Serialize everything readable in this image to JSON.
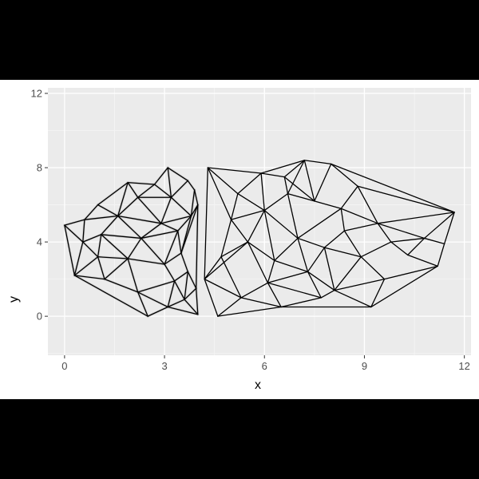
{
  "chart_data": {
    "type": "network",
    "title": "",
    "xlabel": "x",
    "ylabel": "y",
    "xlim": [
      -0.5,
      12.2
    ],
    "ylim": [
      -2.1,
      12.3
    ],
    "x_ticks": [
      0,
      3,
      6,
      9,
      12
    ],
    "y_ticks": [
      0,
      4,
      8,
      12
    ],
    "x_tick_labels": [
      "0",
      "3",
      "6",
      "9",
      "12"
    ],
    "y_tick_labels": [
      "0",
      "4",
      "8",
      "12"
    ],
    "grid": true,
    "legend": "none",
    "colors": {
      "panel_bg": "#ebebeb",
      "grid_major": "#ffffff",
      "grid_minor": "#f5f5f5",
      "edge": "#000000",
      "halo": "#bdbdbd",
      "outer_bg": "#000000"
    },
    "series": [
      {
        "points": [
          [
            0,
            4.9
          ],
          [
            0.3,
            2.2
          ],
          [
            1.0,
            6.0
          ],
          [
            1.1,
            4.4
          ],
          [
            1.2,
            2.0
          ],
          [
            1.0,
            3.2
          ],
          [
            0.55,
            4.0
          ],
          [
            1.6,
            5.4
          ],
          [
            1.9,
            3.1
          ],
          [
            2.2,
            6.4
          ],
          [
            2.3,
            4.2
          ],
          [
            2.5,
            0.0
          ],
          [
            2.2,
            1.3
          ],
          [
            2.7,
            7.1
          ],
          [
            2.9,
            5.0
          ],
          [
            3.0,
            2.8
          ],
          [
            3.1,
            8.0
          ],
          [
            3.2,
            6.4
          ],
          [
            3.4,
            4.6
          ],
          [
            3.5,
            3.4
          ],
          [
            3.3,
            1.9
          ],
          [
            3.1,
            0.5
          ],
          [
            3.7,
            7.3
          ],
          [
            3.8,
            5.4
          ],
          [
            3.7,
            2.4
          ],
          [
            3.9,
            6.8
          ],
          [
            4.0,
            6.0
          ],
          [
            3.95,
            1.5
          ],
          [
            4.0,
            0.1
          ],
          [
            3.6,
            0.9
          ],
          [
            1.9,
            7.2
          ],
          [
            0.6,
            5.2
          ]
        ],
        "edges": [
          [
            0,
            31
          ],
          [
            0,
            6
          ],
          [
            0,
            1
          ],
          [
            31,
            2
          ],
          [
            31,
            6
          ],
          [
            31,
            7
          ],
          [
            2,
            30
          ],
          [
            2,
            7
          ],
          [
            30,
            13
          ],
          [
            30,
            7
          ],
          [
            30,
            9
          ],
          [
            13,
            16
          ],
          [
            13,
            9
          ],
          [
            16,
            22
          ],
          [
            16,
            17
          ],
          [
            13,
            17
          ],
          [
            22,
            25
          ],
          [
            22,
            17
          ],
          [
            25,
            26
          ],
          [
            26,
            23
          ],
          [
            25,
            23
          ],
          [
            26,
            27
          ],
          [
            27,
            28
          ],
          [
            28,
            21
          ],
          [
            21,
            11
          ],
          [
            11,
            1
          ],
          [
            1,
            6
          ],
          [
            1,
            4
          ],
          [
            1,
            5
          ],
          [
            6,
            3
          ],
          [
            6,
            5
          ],
          [
            3,
            5
          ],
          [
            3,
            7
          ],
          [
            7,
            9
          ],
          [
            9,
            17
          ],
          [
            9,
            14
          ],
          [
            7,
            14
          ],
          [
            3,
            10
          ],
          [
            7,
            10
          ],
          [
            10,
            14
          ],
          [
            14,
            17
          ],
          [
            14,
            23
          ],
          [
            17,
            23
          ],
          [
            14,
            18
          ],
          [
            18,
            23
          ],
          [
            10,
            18
          ],
          [
            10,
            8
          ],
          [
            5,
            8
          ],
          [
            4,
            8
          ],
          [
            4,
            12
          ],
          [
            12,
            8
          ],
          [
            8,
            15
          ],
          [
            10,
            15
          ],
          [
            15,
            18
          ],
          [
            15,
            19
          ],
          [
            18,
            19
          ],
          [
            19,
            23
          ],
          [
            19,
            26
          ],
          [
            19,
            24
          ],
          [
            24,
            27
          ],
          [
            24,
            20
          ],
          [
            20,
            15
          ],
          [
            20,
            12
          ],
          [
            12,
            11
          ],
          [
            12,
            21
          ],
          [
            20,
            21
          ],
          [
            21,
            29
          ],
          [
            29,
            20
          ],
          [
            29,
            27
          ],
          [
            29,
            28
          ],
          [
            24,
            29
          ],
          [
            3,
            8
          ],
          [
            5,
            4
          ]
        ]
      },
      {
        "points": [
          [
            4.3,
            8.0
          ],
          [
            4.2,
            2.0
          ],
          [
            4.6,
            0.0
          ],
          [
            5.2,
            6.6
          ],
          [
            5.5,
            4.0
          ],
          [
            5.0,
            5.2
          ],
          [
            5.3,
            1.0
          ],
          [
            5.9,
            7.7
          ],
          [
            6.0,
            5.7
          ],
          [
            6.3,
            3.0
          ],
          [
            6.1,
            1.8
          ],
          [
            6.5,
            0.5
          ],
          [
            6.7,
            6.6
          ],
          [
            7.0,
            4.2
          ],
          [
            7.2,
            8.4
          ],
          [
            7.5,
            6.2
          ],
          [
            7.3,
            2.4
          ],
          [
            7.8,
            3.7
          ],
          [
            8.0,
            8.2
          ],
          [
            8.3,
            5.8
          ],
          [
            8.4,
            4.6
          ],
          [
            8.1,
            1.4
          ],
          [
            8.8,
            7.0
          ],
          [
            8.9,
            3.2
          ],
          [
            9.2,
            0.5
          ],
          [
            9.4,
            5.0
          ],
          [
            9.6,
            2.0
          ],
          [
            9.8,
            4.0
          ],
          [
            10.3,
            3.3
          ],
          [
            10.8,
            4.2
          ],
          [
            11.2,
            2.7
          ],
          [
            11.4,
            3.9
          ],
          [
            11.7,
            5.6
          ],
          [
            4.7,
            3.2
          ],
          [
            6.6,
            7.5
          ],
          [
            7.7,
            1.0
          ]
        ],
        "edges": [
          [
            0,
            1
          ],
          [
            1,
            2
          ],
          [
            0,
            3
          ],
          [
            0,
            7
          ],
          [
            3,
            7
          ],
          [
            0,
            5
          ],
          [
            3,
            5
          ],
          [
            5,
            4
          ],
          [
            4,
            1
          ],
          [
            5,
            33
          ],
          [
            33,
            1
          ],
          [
            33,
            4
          ],
          [
            1,
            6
          ],
          [
            6,
            2
          ],
          [
            2,
            11
          ],
          [
            6,
            11
          ],
          [
            6,
            10
          ],
          [
            10,
            11
          ],
          [
            4,
            9
          ],
          [
            9,
            10
          ],
          [
            4,
            10
          ],
          [
            33,
            6
          ],
          [
            4,
            8
          ],
          [
            5,
            8
          ],
          [
            3,
            8
          ],
          [
            7,
            34
          ],
          [
            34,
            14
          ],
          [
            7,
            14
          ],
          [
            34,
            12
          ],
          [
            12,
            8
          ],
          [
            7,
            8
          ],
          [
            34,
            15
          ],
          [
            14,
            18
          ],
          [
            14,
            15
          ],
          [
            15,
            18
          ],
          [
            15,
            12
          ],
          [
            12,
            13
          ],
          [
            8,
            13
          ],
          [
            8,
            9
          ],
          [
            9,
            13
          ],
          [
            13,
            16
          ],
          [
            9,
            16
          ],
          [
            16,
            10
          ],
          [
            16,
            35
          ],
          [
            10,
            35
          ],
          [
            11,
            35
          ],
          [
            35,
            21
          ],
          [
            21,
            24
          ],
          [
            11,
            24
          ],
          [
            13,
            17
          ],
          [
            16,
            17
          ],
          [
            17,
            20
          ],
          [
            13,
            19
          ],
          [
            15,
            19
          ],
          [
            19,
            20
          ],
          [
            18,
            22
          ],
          [
            18,
            32
          ],
          [
            22,
            19
          ],
          [
            22,
            25
          ],
          [
            19,
            25
          ],
          [
            20,
            25
          ],
          [
            20,
            23
          ],
          [
            17,
            23
          ],
          [
            23,
            26
          ],
          [
            16,
            21
          ],
          [
            21,
            26
          ],
          [
            24,
            26
          ],
          [
            26,
            30
          ],
          [
            24,
            30
          ],
          [
            23,
            27
          ],
          [
            25,
            27
          ],
          [
            27,
            28
          ],
          [
            28,
            30
          ],
          [
            28,
            29
          ],
          [
            29,
            31
          ],
          [
            31,
            30
          ],
          [
            29,
            32
          ],
          [
            31,
            32
          ],
          [
            22,
            32
          ],
          [
            25,
            32
          ],
          [
            25,
            29
          ],
          [
            27,
            29
          ],
          [
            17,
            21
          ],
          [
            23,
            21
          ],
          [
            12,
            14
          ]
        ]
      }
    ]
  }
}
